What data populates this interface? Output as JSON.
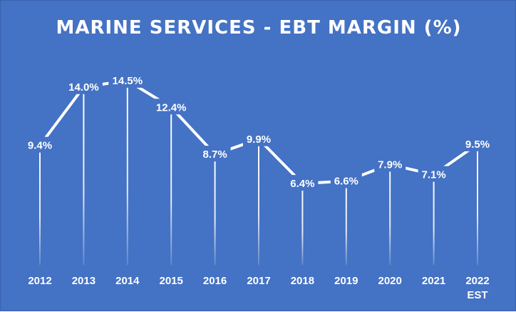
{
  "chart_data": {
    "type": "line",
    "title": "MARINE SERVICES - EBT MARGIN (%)",
    "categories": [
      "2012",
      "2013",
      "2014",
      "2015",
      "2016",
      "2017",
      "2018",
      "2019",
      "2020",
      "2021",
      "2022\nEST"
    ],
    "series": [
      {
        "values": [
          9.4,
          14.0,
          14.5,
          12.4,
          8.7,
          9.9,
          6.4,
          6.6,
          7.9,
          7.1,
          9.5
        ]
      }
    ],
    "data_labels": [
      "9.4%",
      "14.0%",
      "14.5%",
      "12.4%",
      "8.7%",
      "9.9%",
      "6.4%",
      "6.6%",
      "7.9%",
      "7.1%",
      "9.5%"
    ],
    "ylim": [
      0,
      16
    ],
    "grid": false,
    "legend": "none",
    "colors": {
      "background": "#4472C4",
      "line": "#ffffff",
      "text": "#ffffff"
    }
  }
}
